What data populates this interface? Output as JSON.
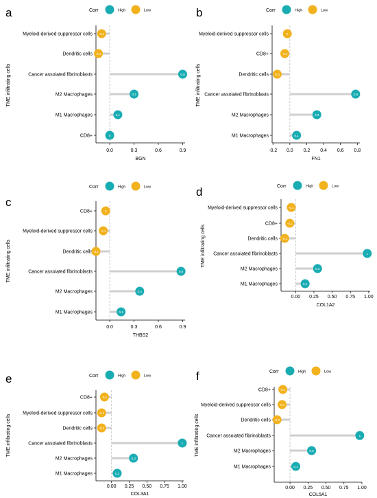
{
  "colors": {
    "high": "#1aacb3",
    "low": "#f2b21e",
    "stem": "#cfcfcf",
    "zero": "#bdbdbd"
  },
  "legend": {
    "title": "Corr",
    "high": "High",
    "low": "Low"
  },
  "ylabel": "TME infiltrating cells",
  "chart_data": [
    {
      "panel": "a",
      "type": "lollipop",
      "xlabel": "BGN",
      "xlim": [
        -0.17,
        0.93
      ],
      "xticks": [
        "0.0",
        "0.3",
        "0.6",
        "0.9"
      ],
      "categories": [
        "Myeloid-derived suppressor cells",
        "Dendritic cells",
        "Cancer assoiated fibrinoblasts",
        "M2 Macrophages",
        "M1 Macrophages",
        "CD8+"
      ],
      "values": [
        -0.1,
        -0.14,
        0.9,
        0.3,
        0.1,
        0.0
      ],
      "labels": [
        "-0.1",
        "-0.1",
        "0.9",
        "0.3",
        "0.1",
        "0"
      ],
      "corr": [
        "Low",
        "Low",
        "High",
        "High",
        "High",
        "High"
      ]
    },
    {
      "panel": "b",
      "type": "lollipop",
      "xlabel": "FN1",
      "xlim": [
        -0.21,
        0.83
      ],
      "xticks": [
        "-0.2",
        "0.0",
        "0.2",
        "0.4",
        "0.6",
        "0.8"
      ],
      "categories": [
        "Myeloid-derived suppressor cells",
        "CD8+",
        "Dendritic cells",
        "Cancer assoiated fibrinoblasts",
        "M2 Macrophages",
        "M1 Macrophages"
      ],
      "values": [
        -0.03,
        -0.06,
        -0.15,
        0.78,
        0.32,
        0.08
      ],
      "labels": [
        "0",
        "-0.1",
        "-0.1",
        "0.8",
        "0.3",
        "0.1"
      ],
      "corr": [
        "Low",
        "Low",
        "Low",
        "High",
        "High",
        "High"
      ]
    },
    {
      "panel": "c",
      "type": "lollipop",
      "xlabel": "THBS2",
      "xlim": [
        -0.17,
        0.93
      ],
      "xticks": [
        "0.0",
        "0.3",
        "0.6",
        "0.9"
      ],
      "categories": [
        "CD8+",
        "Myeloid-derived suppressor cells",
        "Dendritic cells",
        "Cancer assoiated fibrinoblasts",
        "M2 Macrophages",
        "M1 Macrophages"
      ],
      "values": [
        -0.05,
        -0.08,
        -0.17,
        0.88,
        0.37,
        0.14
      ],
      "labels": [
        "0",
        "-0.1",
        "-0.2",
        "0.9",
        "0.4",
        "0.1"
      ],
      "corr": [
        "Low",
        "Low",
        "Low",
        "High",
        "High",
        "High"
      ]
    },
    {
      "panel": "d",
      "type": "lollipop",
      "xlabel": "COL1A2",
      "xlim": [
        -0.2,
        1.02
      ],
      "xticks": [
        "0.00",
        "0.25",
        "0.50",
        "0.75",
        "1.00"
      ],
      "categories": [
        "Myeloid-derived suppressor cells",
        "CD8+",
        "Dendritic cells",
        "Cancer assoiated fibrinoblasts",
        "M2 Macrophages",
        "M1 Macrophages"
      ],
      "values": [
        -0.06,
        -0.08,
        -0.15,
        0.98,
        0.3,
        0.13
      ],
      "labels": [
        "-0.1",
        "-0.1",
        "-0.1",
        "1",
        "0.3",
        "0.1"
      ],
      "corr": [
        "Low",
        "Low",
        "Low",
        "High",
        "High",
        "High"
      ]
    },
    {
      "panel": "e",
      "type": "lollipop",
      "xlabel": "COL3A1",
      "xlim": [
        -0.22,
        1.02
      ],
      "xticks": [
        "0.00",
        "0.25",
        "0.50",
        "0.75",
        "1.00"
      ],
      "categories": [
        "CD8+",
        "Myeloid-derived suppressor cells",
        "Dendritic cells",
        "Cancer assoiated fibrinoblasts",
        "M2 Macrophages",
        "M1 Macrophages"
      ],
      "values": [
        -0.1,
        -0.14,
        -0.14,
        1.0,
        0.31,
        0.08
      ],
      "labels": [
        "-0.1",
        "-0.1",
        "-0.1",
        "1",
        "0.3",
        "0.1"
      ],
      "corr": [
        "Low",
        "Low",
        "Low",
        "High",
        "High",
        "High"
      ]
    },
    {
      "panel": "f",
      "type": "lollipop",
      "xlabel": "COL5A1",
      "xlim": [
        -0.22,
        1.0
      ],
      "xticks": [
        "0.00",
        "0.25",
        "0.50",
        "0.75",
        "1.00"
      ],
      "categories": [
        "CD8+",
        "Myeloid-derived suppressor cells",
        "Dendritic cells",
        "Cancer assoiated fibrinoblasts",
        "M2 Macrophages",
        "M1 Macrophages"
      ],
      "values": [
        -0.1,
        -0.11,
        -0.18,
        0.97,
        0.3,
        0.08
      ],
      "labels": [
        "-0.1",
        "-0.1",
        "-0.2",
        "1",
        "0.3",
        "0.1"
      ],
      "corr": [
        "Low",
        "Low",
        "Low",
        "High",
        "High",
        "High"
      ]
    }
  ]
}
